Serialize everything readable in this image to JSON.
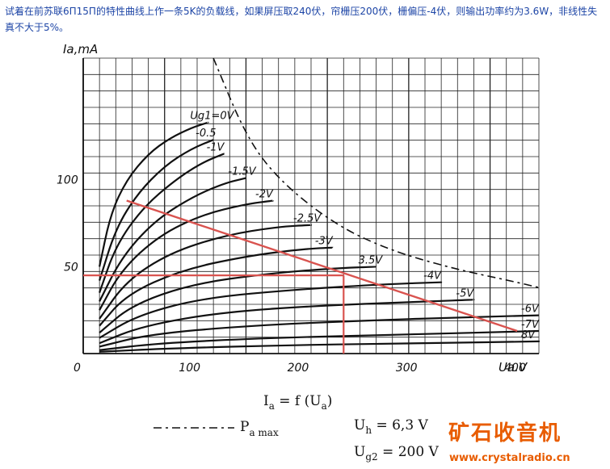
{
  "question": "试着在前苏联6П15П的特性曲线上作一条5K的负载线，如果屏压取240伏，帘栅压200伏，栅偏压-4伏，则输出功率约为3.6W，非线性失真不大于5%。",
  "chart_data": {
    "type": "line",
    "title": "",
    "ylabel": "Ia,mA",
    "xlabel": "Ua.V",
    "xlim": [
      0,
      420
    ],
    "ylim": [
      0,
      170
    ],
    "x_ticks": [
      "0",
      "100",
      "200",
      "300",
      "400"
    ],
    "y_ticks": [
      "50",
      "100"
    ],
    "grid": true,
    "series": [
      {
        "name": "Ug1=0V",
        "x": [
          15,
          25,
          40,
          60,
          80,
          100,
          115
        ],
        "y": [
          50,
          80,
          100,
          115,
          124,
          130,
          133
        ]
      },
      {
        "name": "-0.5",
        "x": [
          15,
          30,
          50,
          75,
          100,
          120
        ],
        "y": [
          42,
          72,
          92,
          108,
          118,
          123
        ]
      },
      {
        "name": "-1V",
        "x": [
          15,
          30,
          55,
          85,
          110,
          130
        ],
        "y": [
          35,
          62,
          84,
          100,
          110,
          115
        ]
      },
      {
        "name": "-1.5V",
        "x": [
          15,
          35,
          65,
          100,
          130,
          150
        ],
        "y": [
          30,
          55,
          76,
          90,
          98,
          101
        ]
      },
      {
        "name": "-2V",
        "x": [
          15,
          35,
          70,
          110,
          150,
          175
        ],
        "y": [
          25,
          48,
          68,
          80,
          86,
          88
        ]
      },
      {
        "name": "-2.5V",
        "x": [
          15,
          40,
          80,
          130,
          180,
          210
        ],
        "y": [
          20,
          42,
          58,
          68,
          73,
          74
        ]
      },
      {
        "name": "-3V",
        "x": [
          15,
          40,
          90,
          150,
          200,
          230
        ],
        "y": [
          16,
          34,
          48,
          56,
          60,
          61
        ]
      },
      {
        "name": "3.5V",
        "x": [
          15,
          45,
          100,
          170,
          230,
          270
        ],
        "y": [
          12,
          28,
          40,
          46,
          49,
          50
        ]
      },
      {
        "name": "-4V",
        "x": [
          15,
          50,
          110,
          200,
          280,
          330
        ],
        "y": [
          9,
          22,
          32,
          37,
          40,
          41
        ]
      },
      {
        "name": "-5V",
        "x": [
          15,
          55,
          130,
          230,
          320,
          360
        ],
        "y": [
          6,
          16,
          24,
          28,
          30,
          31
        ]
      },
      {
        "name": "-6V",
        "x": [
          15,
          60,
          150,
          260,
          360,
          420
        ],
        "y": [
          4,
          11,
          16,
          19,
          21,
          22
        ]
      },
      {
        "name": "-7V",
        "x": [
          15,
          70,
          170,
          300,
          420
        ],
        "y": [
          2,
          6,
          9,
          11,
          13
        ]
      },
      {
        "name": "8V",
        "x": [
          15,
          80,
          200,
          320,
          420
        ],
        "y": [
          1,
          3,
          5,
          6,
          7
        ]
      }
    ],
    "load_line": {
      "from": [
        40,
        88
      ],
      "to": [
        400,
        13
      ]
    },
    "operating_point": {
      "x": 240,
      "y": 45
    },
    "pmax_curve": {
      "x": [
        120,
        150,
        180,
        230,
        280,
        340,
        400,
        420
      ],
      "y": [
        170,
        125,
        100,
        75,
        60,
        49,
        41,
        38
      ]
    },
    "legend": {
      "formula_lhs": "I",
      "formula_lhs_sub": "a",
      "formula_rhs": " = f (U",
      "formula_rhs_sub": "a",
      "formula_end": ")",
      "pmax_label": "P",
      "pmax_sub": "a max",
      "uh_label": "U",
      "uh_sub": "h",
      "uh_value": " = 6,3 V",
      "ug2_label": "U",
      "ug2_sub": "g2",
      "ug2_value": " = 200 V"
    }
  },
  "watermark": {
    "text": "矿石收音机",
    "url": "www.crystalradio.cn"
  }
}
